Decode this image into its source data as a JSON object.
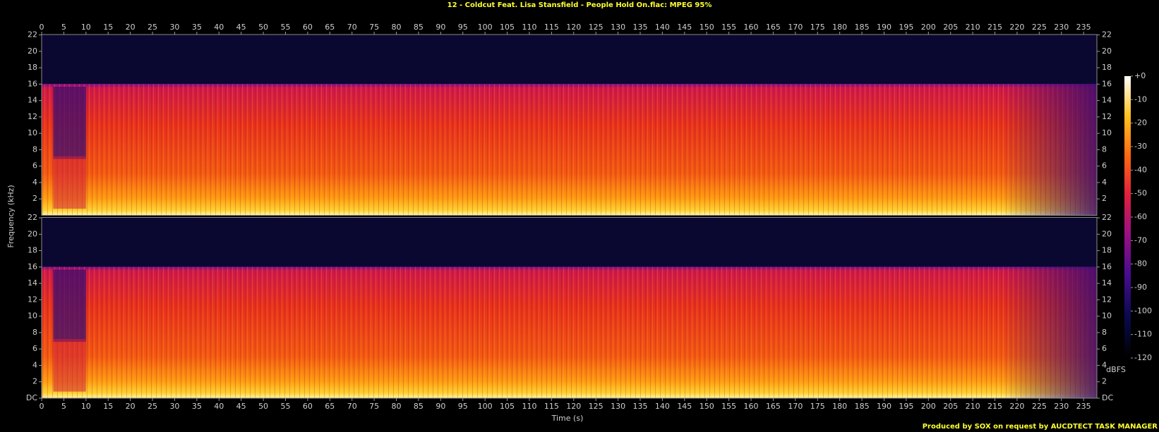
{
  "chart_data": {
    "type": "spectrogram",
    "title": "12 - Coldcut Feat. Lisa Stansfield - People Hold On.flac: MPEG 95%",
    "xlabel": "Time (s)",
    "ylabel": "Frequency (kHz)",
    "channels": 2,
    "xlim": [
      0,
      238
    ],
    "xticks": [
      0,
      5,
      10,
      15,
      20,
      25,
      30,
      35,
      40,
      45,
      50,
      55,
      60,
      65,
      70,
      75,
      80,
      85,
      90,
      95,
      100,
      105,
      110,
      115,
      120,
      125,
      130,
      135,
      140,
      145,
      150,
      155,
      160,
      165,
      170,
      175,
      180,
      185,
      190,
      195,
      200,
      205,
      210,
      215,
      220,
      225,
      230,
      235
    ],
    "ylim": [
      0,
      22.05
    ],
    "yticks": [
      {
        "value": 0,
        "label": "DC"
      },
      2,
      4,
      6,
      8,
      10,
      12,
      14,
      16,
      18,
      20,
      22
    ],
    "colorbar": {
      "label": "dBFS",
      "lim": [
        -120,
        0
      ],
      "ticks": [
        {
          "value": 0,
          "label": "+0"
        },
        -10,
        -20,
        -30,
        -40,
        -50,
        -60,
        -70,
        -80,
        -90,
        -100,
        -110,
        -120
      ]
    },
    "footer": "Produced by SOX on request by AUCDTECT TASK MANAGER"
  }
}
